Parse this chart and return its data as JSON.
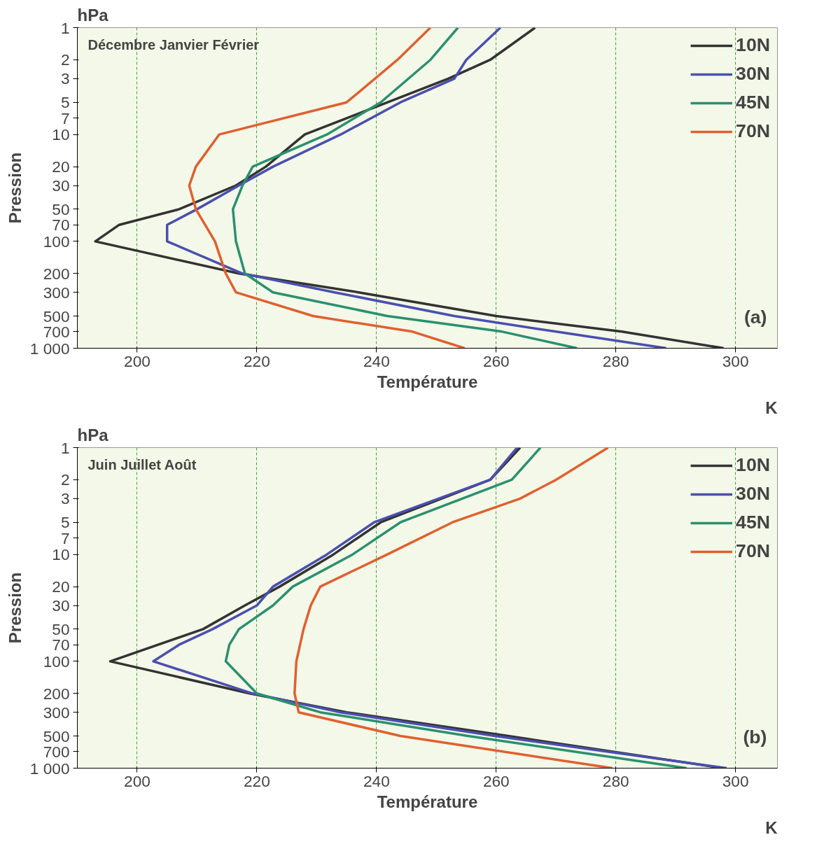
{
  "chart_data": [
    {
      "type": "line",
      "title": "Décembre Janvier Février",
      "xlabel": "Température",
      "ylabel": "Pression",
      "annotations": [
        "hPa",
        "K",
        "(a)"
      ],
      "log": "y",
      "grid": "x",
      "legend": "top right",
      "xlim": [
        190,
        307
      ],
      "xticks": [
        200,
        220,
        240,
        260,
        280,
        300
      ],
      "ylim": [
        1000,
        1
      ],
      "yticks": [
        1,
        2,
        3,
        5,
        7,
        10,
        20,
        30,
        50,
        70,
        100,
        200,
        300,
        500,
        700,
        {
          "value": 1000,
          "label": "1 000"
        }
      ],
      "series": [
        {
          "name": "10N",
          "color": "#333333",
          "x": [
            266.5,
            259,
            252,
            228,
            221.5,
            216.5,
            207,
            197,
            193,
            217,
            237,
            260,
            281,
            298
          ],
          "values": [
            1,
            2,
            3,
            10,
            20,
            30,
            50,
            70,
            100,
            200,
            300,
            500,
            700,
            1000
          ]
        },
        {
          "name": "30N",
          "color": "#4a4fb0",
          "x": [
            260.7,
            255,
            253,
            244,
            234,
            222.7,
            217,
            210,
            205,
            205,
            217.6,
            233,
            253,
            270,
            288.4
          ],
          "values": [
            1,
            2,
            3,
            5,
            10,
            20,
            30,
            50,
            70,
            100,
            200,
            300,
            500,
            700,
            1000
          ]
        },
        {
          "name": "45N",
          "color": "#2a9070",
          "x": [
            253.6,
            249,
            240.7,
            231.7,
            219.3,
            217.6,
            216,
            216.5,
            218,
            222.7,
            241.8,
            261,
            273.5
          ],
          "values": [
            1,
            2,
            5,
            10,
            20,
            30,
            50,
            100,
            200,
            300,
            500,
            700,
            1000
          ]
        },
        {
          "name": "70N",
          "color": "#e06030",
          "x": [
            249,
            243.5,
            235,
            213.7,
            209.8,
            208.7,
            209.8,
            213,
            214.8,
            216.5,
            229.4,
            246,
            254.7
          ],
          "values": [
            1,
            2,
            5,
            10,
            20,
            30,
            50,
            100,
            200,
            300,
            500,
            700,
            1000
          ]
        }
      ]
    },
    {
      "type": "line",
      "title": "Juin Juillet Août",
      "xlabel": "Température",
      "ylabel": "Pression",
      "annotations": [
        "hPa",
        "K",
        "(b)"
      ],
      "log": "y",
      "grid": "x",
      "legend": "top right",
      "xlim": [
        190,
        307
      ],
      "xticks": [
        200,
        220,
        240,
        260,
        280,
        300
      ],
      "ylim": [
        1000,
        1
      ],
      "yticks": [
        1,
        2,
        3,
        5,
        7,
        10,
        20,
        30,
        50,
        70,
        100,
        200,
        300,
        500,
        700,
        {
          "value": 1000,
          "label": "1 000"
        }
      ],
      "series": [
        {
          "name": "10N",
          "color": "#333333",
          "x": [
            264,
            259,
            240.7,
            232.8,
            223.8,
            218,
            211,
            195.5,
            218.8,
            235,
            262,
            298
          ],
          "values": [
            1,
            2,
            5,
            10,
            20,
            30,
            50,
            100,
            200,
            300,
            500,
            1000
          ]
        },
        {
          "name": "30N",
          "color": "#4a4fb0",
          "x": [
            263.5,
            259,
            239.6,
            231.7,
            222.7,
            220,
            212.6,
            207,
            202.7,
            219.3,
            234,
            259.8,
            298.5
          ],
          "values": [
            1,
            2,
            5,
            10,
            20,
            30,
            50,
            70,
            100,
            200,
            300,
            500,
            1000
          ]
        },
        {
          "name": "45N",
          "color": "#2a9070",
          "x": [
            267.4,
            262.6,
            244,
            236,
            226,
            222.7,
            217,
            215.4,
            214.8,
            220,
            230.6,
            255.3,
            291.8
          ],
          "values": [
            1,
            2,
            5,
            10,
            20,
            30,
            50,
            70,
            100,
            200,
            300,
            500,
            1000
          ]
        },
        {
          "name": "70N",
          "color": "#e06030",
          "x": [
            278.7,
            270,
            264,
            252.7,
            241.8,
            230.6,
            229,
            227.8,
            226.6,
            226.3,
            227,
            244,
            279.4
          ],
          "values": [
            1,
            2,
            3,
            5,
            10,
            20,
            30,
            50,
            100,
            200,
            300,
            500,
            1000
          ]
        }
      ]
    }
  ]
}
